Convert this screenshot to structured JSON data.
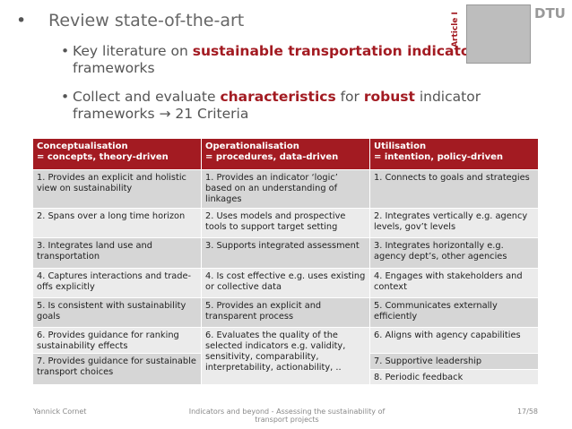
{
  "header": {
    "bullet": "Review state-of-the-art",
    "sub_bullets": [
      [
        "Key literature on ",
        "sustainable transportation indicator",
        " frameworks"
      ],
      [
        "Collect and evaluate ",
        "characteristics",
        " for ",
        "robust",
        " indicator frameworks ",
        "→ 21 Criteria"
      ]
    ],
    "article_label": "Article I",
    "logo": "DTU"
  },
  "table": {
    "columns": [
      {
        "title": "Conceptualisation",
        "subtitle": "= concepts, theory-driven",
        "cells": [
          "1. Provides an explicit and holistic view on sustainability",
          "2. Spans over a long time horizon",
          "3. Integrates land use and transportation",
          "4. Captures interactions and trade-offs explicitly",
          "5. Is consistent with sustainability goals",
          "6. Provides guidance for ranking sustainability effects",
          "7. Provides guidance for sustainable transport choices"
        ]
      },
      {
        "title": "Operationalisation",
        "subtitle": "= procedures, data-driven",
        "cells": [
          "1. Provides an indicator ‘logic’ based on an understanding of linkages",
          "2. Uses models and prospective tools to support target setting",
          "3. Supports integrated assessment",
          "4. Is cost effective e.g. uses existing or collective data",
          "5. Provides an explicit and transparent process",
          "6. Evaluates the quality of the selected indicators e.g. validity, sensitivity, comparability, interpretability, actionability, .."
        ]
      },
      {
        "title": "Utilisation",
        "subtitle": "= intention, policy-driven",
        "cells": [
          "1. Connects to goals and strategies",
          "2. Integrates vertically e.g. agency levels, gov’t levels",
          "3. Integrates horizontally e.g. agency dept’s, other agencies",
          "4. Engages with stakeholders and context",
          "5. Communicates externally efficiently",
          "6. Aligns with agency capabilities",
          "7. Supportive leadership",
          "8. Periodic feedback"
        ]
      }
    ]
  },
  "footer": {
    "author": "Yannick Cornet",
    "title": "Indicators and beyond - Assessing the sustainability of transport projects",
    "page": "17/58"
  }
}
